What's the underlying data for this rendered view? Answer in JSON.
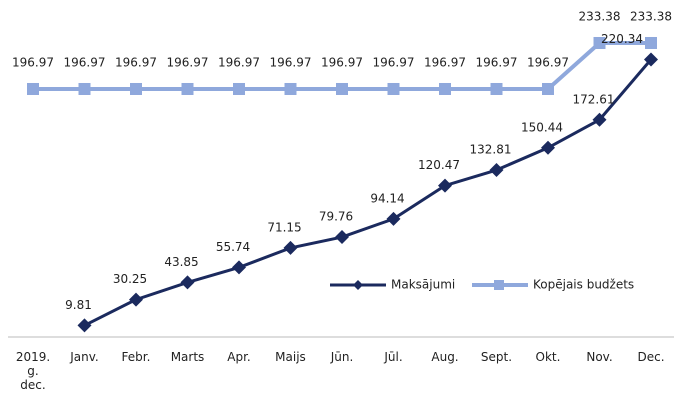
{
  "chart_data": {
    "type": "line",
    "categories": [
      "2019. g. dec.",
      "Janv.",
      "Febr.",
      "Marts",
      "Apr.",
      "Maijs",
      "Jūn.",
      "Jūl.",
      "Aug.",
      "Sept.",
      "Okt.",
      "Nov.",
      "Dec."
    ],
    "series": [
      {
        "name": "Maksājumi",
        "color": "#1b2a5e",
        "marker": "diamond",
        "values": [
          null,
          9.81,
          30.25,
          43.85,
          55.74,
          71.15,
          79.76,
          94.14,
          120.47,
          132.81,
          150.44,
          172.61,
          220.34
        ]
      },
      {
        "name": "Kopējais budžets",
        "color": "#8fa8dc",
        "marker": "square",
        "values": [
          196.97,
          196.97,
          196.97,
          196.97,
          196.97,
          196.97,
          196.97,
          196.97,
          196.97,
          196.97,
          196.97,
          233.38,
          233.38
        ]
      }
    ],
    "ylim": [
      0,
      250
    ],
    "grid": false,
    "legend": "center-right",
    "data_labels": true
  }
}
